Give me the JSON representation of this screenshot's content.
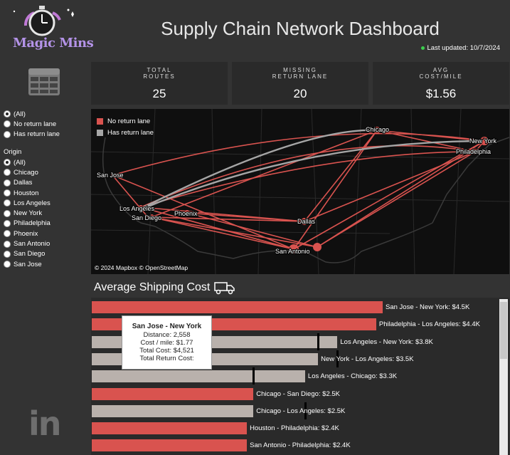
{
  "brand": {
    "name": "Magic Mins"
  },
  "header": {
    "title": "Supply Chain Network Dashboard",
    "last_updated": "Last updated: 10/7/2024"
  },
  "filters": {
    "return_lane": {
      "options": [
        "(All)",
        "No return lane",
        "Has return lane"
      ],
      "selected": 0
    },
    "origin": {
      "title": "Origin",
      "options": [
        "(All)",
        "Chicago",
        "Dallas",
        "Houston",
        "Los Angeles",
        "New York",
        "Philadelphia",
        "Phoenix",
        "San Antonio",
        "San Diego",
        "San Jose"
      ],
      "selected": 0
    }
  },
  "kpis": [
    {
      "label": "TOTAL\nROUTES",
      "value": "25"
    },
    {
      "label": "MISSING\nRETURN LANE",
      "value": "20"
    },
    {
      "label": "AVG\nCOST/MILE",
      "value": "$1.56"
    }
  ],
  "map": {
    "legend": [
      {
        "label": "No return lane",
        "color": "#d9534f"
      },
      {
        "label": "Has return lane",
        "color": "#a6a6a6"
      }
    ],
    "cities": [
      "Chicago",
      "New York",
      "Philadelphia",
      "San Jose",
      "Los Angeles",
      "Phoenix",
      "San Diego",
      "Dallas",
      "San Antonio"
    ],
    "attribution": "© 2024 Mapbox  © OpenStreetMap"
  },
  "shipping": {
    "title": "Average Shipping Cost",
    "bars": [
      {
        "label": "San Jose  -  New York: $4.5K",
        "value": 4.5,
        "type": "none"
      },
      {
        "label": "Philadelphia  -  Los Angeles: $4.4K",
        "value": 4.4,
        "type": "none"
      },
      {
        "label": "Los Angeles  -  New York: $3.8K",
        "value": 3.8,
        "type": "return",
        "ret": 3.5
      },
      {
        "label": "New York  -  Los Angeles: $3.5K",
        "value": 3.5,
        "type": "return",
        "ret": 3.8
      },
      {
        "label": "Los Angeles  -  Chicago: $3.3K",
        "value": 3.3,
        "type": "return",
        "ret": 2.5
      },
      {
        "label": "Chicago  -  San Diego: $2.5K",
        "value": 2.5,
        "type": "none"
      },
      {
        "label": "Chicago  -  Los Angeles: $2.5K",
        "value": 2.5,
        "type": "return",
        "ret": 3.3
      },
      {
        "label": "Houston  -  Philadelphia: $2.4K",
        "value": 2.4,
        "type": "none"
      },
      {
        "label": "San Antonio  -  Philadelphia: $2.4K",
        "value": 2.4,
        "type": "none"
      }
    ],
    "colors": {
      "none": "#d9534f",
      "return": "#b9b1ac"
    }
  },
  "tooltip": {
    "title": "San Jose  -  New York",
    "distance": "Distance: 2,558",
    "cost_mile": "Cost / mile: $1.77",
    "total_cost": "Total Cost: $4,521",
    "return_cost": "Total Return Cost:"
  },
  "social": {
    "icon": "linkedin-icon",
    "text": "in"
  }
}
